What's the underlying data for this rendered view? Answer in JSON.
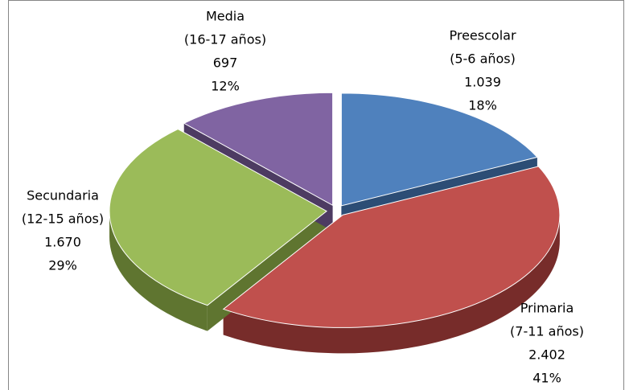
{
  "chart_data": {
    "type": "pie",
    "categories": [
      "Preescolar",
      "Primaria",
      "Secundaria",
      "Media"
    ],
    "ranges": [
      "(5-6 años)",
      "(7-11 años)",
      "(12-15 años)",
      "(16-17 años)"
    ],
    "values": [
      1039,
      2402,
      1670,
      697
    ],
    "value_labels": [
      "1.039",
      "2.402",
      "1.670",
      "697"
    ],
    "percent_labels": [
      "18%",
      "41%",
      "29%",
      "12%"
    ],
    "colors": [
      "#4f81bd",
      "#c0504d",
      "#9bbb59",
      "#8064a2"
    ],
    "side_colors": [
      "#2c4d75",
      "#772c2a",
      "#5f7530",
      "#4d3b62"
    ]
  }
}
